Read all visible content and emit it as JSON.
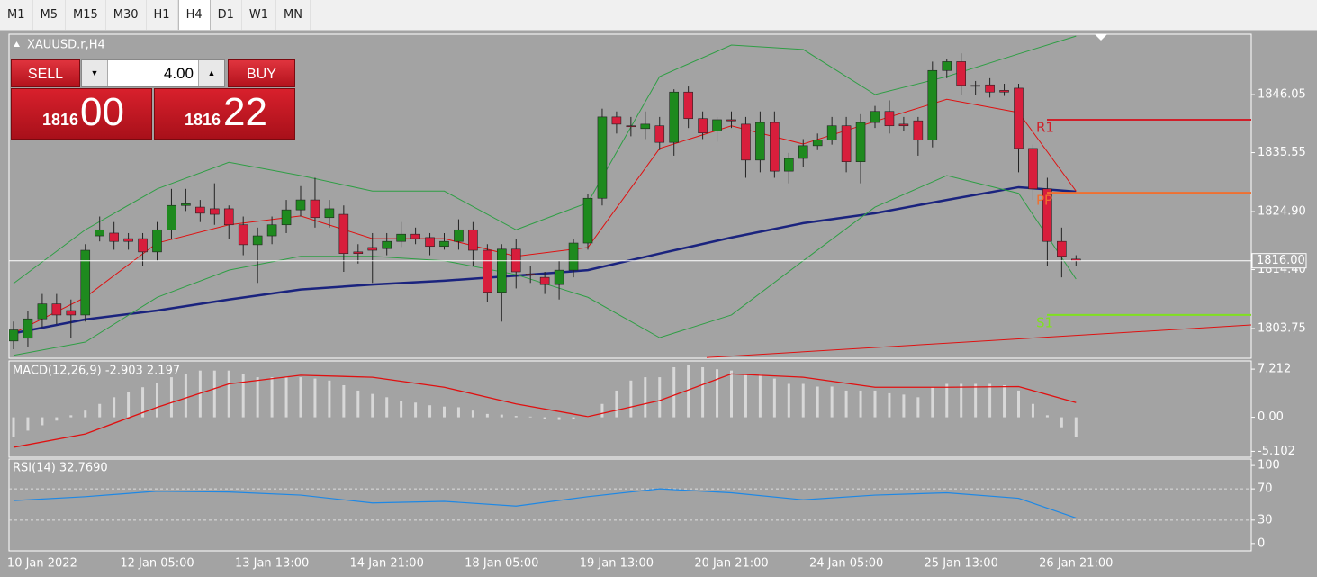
{
  "toolbar": {
    "timeframes": [
      "M1",
      "M5",
      "M15",
      "M30",
      "H1",
      "H4",
      "D1",
      "W1",
      "MN"
    ],
    "active": "H4"
  },
  "trade_panel": {
    "sell": "SELL",
    "buy": "BUY",
    "lots": "4.00",
    "bid_big": "1816",
    "bid_small": "00",
    "ask_big": "1816",
    "ask_small": "22"
  },
  "chart": {
    "symbol": "XAUUSD.r,H4",
    "ylim": [
      1798.38,
      1856.95
    ],
    "yticks": [
      1846.05,
      1835.55,
      {
        "value": 1824.9,
        "label": "1824.90"
      },
      {
        "value": 1814.4,
        "label": "1814.40"
      },
      1803.75
    ],
    "current_price": {
      "value": 1816,
      "label": "1816.00"
    },
    "bull_color": "#1e8a1e",
    "bear_color": "#d81e3c",
    "candles": [
      [
        1801.5,
        1805,
        1800,
        1803.5
      ],
      [
        1802,
        1807,
        1800.5,
        1805.5
      ],
      [
        1805.5,
        1810,
        1804,
        1808.2
      ],
      [
        1808.2,
        1810,
        1804.5,
        1806.2
      ],
      [
        1807,
        1809,
        1802,
        1806.2
      ],
      [
        1806.2,
        1819,
        1805,
        1817.9
      ],
      [
        1820.5,
        1824,
        1819.5,
        1821.6
      ],
      [
        1821,
        1823,
        1818,
        1819.5
      ],
      [
        1820,
        1821,
        1818,
        1819.5
      ],
      [
        1820,
        1821,
        1815,
        1817.6
      ],
      [
        1817.6,
        1823,
        1816,
        1821.6
      ],
      [
        1821.6,
        1829,
        1820,
        1826
      ],
      [
        1826,
        1829,
        1825,
        1826.3
      ],
      [
        1825.7,
        1827,
        1823,
        1824.6
      ],
      [
        1825.4,
        1830,
        1822.5,
        1824.4
      ],
      [
        1825.4,
        1826,
        1820,
        1822.5
      ],
      [
        1822.5,
        1824,
        1817,
        1818.9
      ],
      [
        1818.9,
        1822,
        1812,
        1820.5
      ],
      [
        1820.5,
        1824,
        1819,
        1822.5
      ],
      [
        1822.5,
        1827,
        1821,
        1825.2
      ],
      [
        1825.2,
        1829.5,
        1824,
        1827
      ],
      [
        1827,
        1831,
        1822,
        1823.8
      ],
      [
        1823.8,
        1827,
        1822,
        1825.4
      ],
      [
        1824.4,
        1826,
        1814,
        1817.3
      ],
      [
        1817.6,
        1819,
        1815.5,
        1817.3
      ],
      [
        1818.4,
        1821,
        1812,
        1817.9
      ],
      [
        1818.2,
        1821,
        1817,
        1819.5
      ],
      [
        1819.5,
        1823,
        1818.5,
        1820.8
      ],
      [
        1820.8,
        1822,
        1819,
        1820
      ],
      [
        1820.2,
        1821,
        1817,
        1818.6
      ],
      [
        1818.6,
        1821,
        1818,
        1819.5
      ],
      [
        1819.5,
        1823.5,
        1818,
        1821.6
      ],
      [
        1821.6,
        1823,
        1815,
        1817.9
      ],
      [
        1817.9,
        1819,
        1808.5,
        1810.3
      ],
      [
        1810.3,
        1819,
        1805,
        1818.1
      ],
      [
        1818.1,
        1820,
        1811,
        1814
      ],
      [
        1813.6,
        1815,
        1812,
        1813.4
      ],
      [
        1813,
        1814,
        1810,
        1811.7
      ],
      [
        1811.7,
        1816,
        1809,
        1814.3
      ],
      [
        1814.3,
        1820,
        1813,
        1819.2
      ],
      [
        1819.2,
        1828,
        1818,
        1827.3
      ],
      [
        1827.3,
        1843.5,
        1826,
        1842
      ],
      [
        1842,
        1843,
        1839,
        1840.7
      ],
      [
        1840.4,
        1842,
        1838.5,
        1840.3
      ],
      [
        1839.9,
        1843,
        1838,
        1840.7
      ],
      [
        1840.4,
        1842,
        1836,
        1837.4
      ],
      [
        1837.4,
        1847,
        1835,
        1846.5
      ],
      [
        1846.5,
        1847.5,
        1840,
        1841.7
      ],
      [
        1841.7,
        1843,
        1838,
        1839.1
      ],
      [
        1839.5,
        1842,
        1837.5,
        1841.5
      ],
      [
        1841.5,
        1843,
        1840,
        1841.3
      ],
      [
        1840.7,
        1842,
        1831,
        1834.2
      ],
      [
        1834.2,
        1843,
        1832,
        1841
      ],
      [
        1841,
        1843,
        1831,
        1832.2
      ],
      [
        1832.2,
        1835.5,
        1830,
        1834.5
      ],
      [
        1834.5,
        1838,
        1833,
        1836.8
      ],
      [
        1836.8,
        1839,
        1836,
        1837.8
      ],
      [
        1837.8,
        1842,
        1837,
        1840.4
      ],
      [
        1840.4,
        1842,
        1832,
        1833.9
      ],
      [
        1833.9,
        1842.5,
        1830,
        1841
      ],
      [
        1841,
        1844,
        1840,
        1843
      ],
      [
        1843,
        1845,
        1839,
        1840.4
      ],
      [
        1840.7,
        1842,
        1839.5,
        1840.4
      ],
      [
        1841.3,
        1842,
        1835,
        1837.8
      ],
      [
        1837.8,
        1852,
        1836.5,
        1850.4
      ],
      [
        1850.4,
        1852.5,
        1849,
        1852
      ],
      [
        1852,
        1853.5,
        1846,
        1847.7
      ],
      [
        1847.7,
        1848.5,
        1846,
        1847.6
      ],
      [
        1847.8,
        1849,
        1845.5,
        1846.5
      ],
      [
        1846.8,
        1848,
        1845.8,
        1846.5
      ],
      [
        1847.2,
        1848,
        1832,
        1836.3
      ],
      [
        1836.3,
        1837,
        1827,
        1829
      ],
      [
        1829,
        1831,
        1815,
        1819.5
      ],
      [
        1819.5,
        1822,
        1813,
        1816.8
      ],
      [
        1816.3,
        1817,
        1815,
        1816
      ]
    ],
    "x_labels": [
      null,
      null,
      "10 Jan 2022",
      null,
      null,
      null,
      null,
      null,
      null,
      null,
      "12 Jan 05:00",
      null,
      null,
      null,
      null,
      null,
      null,
      null,
      "13 Jan 13:00",
      null,
      null,
      null,
      null,
      null,
      null,
      null,
      "14 Jan 21:00",
      null,
      null,
      null,
      null,
      null,
      null,
      null,
      "18 Jan 05:00",
      null,
      null,
      null,
      null,
      null,
      null,
      null,
      "19 Jan 13:00",
      null,
      null,
      null,
      null,
      null,
      null,
      null,
      "20 Jan 21:00",
      null,
      null,
      null,
      null,
      null,
      null,
      null,
      "24 Jan 05:00",
      null,
      null,
      null,
      null,
      null,
      null,
      null,
      "25 Jan 13:00",
      null,
      null,
      null,
      null,
      null,
      null,
      null,
      "26 Jan 21:00"
    ],
    "line_x": [
      0,
      5,
      10,
      15,
      20,
      25,
      30,
      35,
      40,
      45,
      50,
      55,
      60,
      65,
      70,
      74
    ],
    "lines": [
      {
        "color": "#1a237e",
        "width": 2.5,
        "values": [
          1802.9,
          1805.4,
          1807,
          1809,
          1810.8,
          1811.7,
          1812.4,
          1813.3,
          1814.3,
          1817.3,
          1820.2,
          1822.8,
          1824.6,
          1827,
          1829.3,
          1828.5
        ]
      },
      {
        "color": "#2e9e44",
        "width": 1,
        "values": [
          1811.9,
          1821.6,
          1829,
          1833.8,
          1831.4,
          1828.6,
          1828.6,
          1821.6,
          1826.5,
          1849.3,
          1855,
          1854.2,
          1846.05,
          1849.3,
          1853.4,
          1856.6
        ]
      },
      {
        "color": "#2e9e44",
        "width": 1,
        "values": [
          1798.9,
          1801.3,
          1809.4,
          1814.3,
          1816.8,
          1816.8,
          1816,
          1813.5,
          1809.4,
          1802.1,
          1806.2,
          1816,
          1825.7,
          1831.4,
          1828.2,
          1812.7
        ]
      },
      {
        "color": "#e01010",
        "width": 1,
        "values": [
          1802.9,
          1809.4,
          1819.2,
          1822.5,
          1824.1,
          1820,
          1820,
          1816.8,
          1818.4,
          1836.3,
          1840.4,
          1837.1,
          1841.2,
          1845.2,
          1842.8,
          1828.6
        ]
      }
    ],
    "pivots": [
      {
        "label": "R1",
        "value": 1841.5,
        "color": "#d0202a"
      },
      {
        "label": "PP",
        "value": 1828.3,
        "color": "#f07030"
      },
      {
        "label": "S1",
        "value": 1806.2,
        "color": "#80e020"
      }
    ],
    "trendline": [
      1798.5,
      1804.4
    ]
  },
  "macd": {
    "title": "MACD(12,26,9) -2.903 2.197",
    "ylim": [
      -5.99,
      8.44
    ],
    "yticks": [
      7.212,
      {
        "value": 0,
        "label": "0.00"
      },
      -5.102
    ],
    "histogram": [
      -3,
      -2,
      -1.2,
      -0.5,
      0.3,
      1,
      2,
      3,
      3.8,
      4.5,
      5.2,
      6,
      6.5,
      7,
      7,
      7,
      6.5,
      6,
      6,
      6,
      6,
      5.8,
      5.5,
      4.8,
      4,
      3.5,
      3,
      2.5,
      2.2,
      1.8,
      1.6,
      1.5,
      1,
      0.5,
      0.4,
      0.2,
      0.1,
      -0.2,
      -0.4,
      -0.2,
      0.2,
      2,
      4,
      5.5,
      6,
      6,
      7.5,
      7.8,
      7.5,
      7.2,
      7,
      6.5,
      6.5,
      5.8,
      5,
      5,
      4.6,
      4.6,
      4,
      4,
      4,
      3.6,
      3.4,
      3,
      4.5,
      5,
      5,
      5,
      5,
      4.8,
      4,
      2,
      0.3,
      -1.5,
      -2.903
    ],
    "signal": [
      -4.5,
      -2.5,
      1.5,
      5,
      6.3,
      6,
      4.5,
      2,
      0.1,
      2.5,
      6.5,
      6,
      4.5,
      4.5,
      4.6,
      2.197
    ]
  },
  "rsi": {
    "title": "RSI(14) 32.7690",
    "ylim": [
      -9.4,
      108.2
    ],
    "yticks": [
      100,
      70,
      30,
      0
    ],
    "levels": [
      70,
      30
    ],
    "values": [
      55,
      60,
      67,
      66,
      62,
      52,
      54,
      48,
      60,
      70,
      65,
      56,
      62,
      65,
      58,
      32.769
    ]
  }
}
